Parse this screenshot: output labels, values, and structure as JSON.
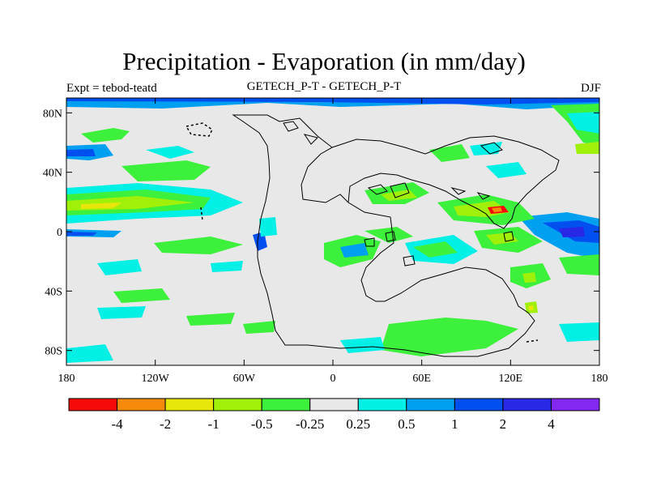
{
  "title": "Precipitation - Evaporation (in mm/day)",
  "subtitle_left": "Expt = tebod-teatd",
  "subtitle_center": "GETECH_P-T - GETECH_P-T",
  "subtitle_right": "DJF",
  "lon_ticks": [
    "180",
    "120W",
    "60W",
    "0",
    "60E",
    "120E",
    "180"
  ],
  "lat_ticks": [
    "80N",
    "40N",
    "0",
    "40S",
    "80S"
  ],
  "lat_values": [
    80,
    40,
    0,
    -40,
    -80
  ],
  "lon_values": [
    -180,
    -120,
    -60,
    0,
    60,
    120,
    180
  ],
  "lat_range": [
    -90,
    90
  ],
  "lon_range": [
    -180,
    180
  ],
  "colorbar": {
    "colors": [
      "#f50a0a",
      "#f58a0a",
      "#e6e60a",
      "#a0f00a",
      "#3cf03c",
      "#e8e8e8",
      "#00f0e6",
      "#00a0f0",
      "#0050f0",
      "#2828e6",
      "#8228f0"
    ],
    "labels": [
      "-4",
      "-2",
      "-1",
      "-0.5",
      "-0.25",
      "0.25",
      "0.5",
      "1",
      "2",
      "4"
    ]
  },
  "colors": {
    "background_field": "#e8e8e8",
    "coast": "#000000"
  }
}
